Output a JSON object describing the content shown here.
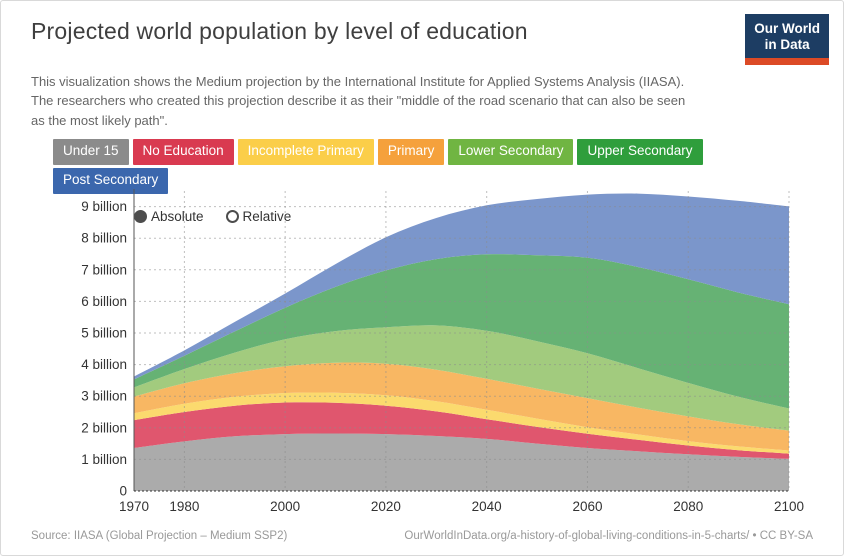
{
  "header": {
    "title": "Projected world population by level of education",
    "logo": {
      "line1": "Our World",
      "line2": "in Data",
      "bg_color": "#1d3d63",
      "stripe_color": "#dc4a26"
    }
  },
  "subtitle": "This visualization shows the Medium projection by the International Institute for Applied Systems Analysis (IIASA). The researchers who created this projection describe it as their \"middle of the road scenario that can also be seen as the most likely path\".",
  "legend": {
    "items": [
      {
        "label": "Under 15",
        "color": "#8b8b8b"
      },
      {
        "label": "No Education",
        "color": "#d93a50"
      },
      {
        "label": "Incomplete Primary",
        "color": "#fbce49"
      },
      {
        "label": "Primary",
        "color": "#f5a13c"
      },
      {
        "label": "Lower Secondary",
        "color": "#70b542"
      },
      {
        "label": "Upper Secondary",
        "color": "#2f9e3c"
      },
      {
        "label": "Post Secondary",
        "color": "#3b67ad"
      }
    ]
  },
  "toggle": {
    "options": [
      {
        "label": "Absolute",
        "selected": true
      },
      {
        "label": "Relative",
        "selected": false
      }
    ]
  },
  "chart_data": {
    "type": "area",
    "stacked": true,
    "title": "Projected world population by level of education",
    "units": "billion people",
    "x": [
      1970,
      1980,
      1990,
      2000,
      2010,
      2020,
      2030,
      2040,
      2050,
      2060,
      2070,
      2080,
      2090,
      2100
    ],
    "series": [
      {
        "name": "Under 15",
        "fill": "#ababab",
        "values": [
          1.36,
          1.57,
          1.73,
          1.8,
          1.82,
          1.8,
          1.74,
          1.65,
          1.5,
          1.36,
          1.26,
          1.16,
          1.08,
          1.02
        ]
      },
      {
        "name": "No Education",
        "fill": "#e0566e",
        "values": [
          0.88,
          0.93,
          0.97,
          1.0,
          0.97,
          0.9,
          0.78,
          0.62,
          0.53,
          0.45,
          0.36,
          0.28,
          0.21,
          0.16
        ]
      },
      {
        "name": "Incomplete Primary",
        "fill": "#fbda6e",
        "values": [
          0.22,
          0.26,
          0.28,
          0.3,
          0.32,
          0.33,
          0.32,
          0.3,
          0.26,
          0.21,
          0.17,
          0.14,
          0.12,
          0.1
        ]
      },
      {
        "name": "Primary",
        "fill": "#f8b763",
        "values": [
          0.53,
          0.65,
          0.75,
          0.85,
          0.95,
          1.0,
          1.0,
          0.98,
          0.95,
          0.92,
          0.85,
          0.78,
          0.7,
          0.63
        ]
      },
      {
        "name": "Lower Secondary",
        "fill": "#a2cb7e",
        "values": [
          0.29,
          0.45,
          0.65,
          0.85,
          1.0,
          1.15,
          1.4,
          1.52,
          1.5,
          1.42,
          1.25,
          1.06,
          0.87,
          0.7
        ]
      },
      {
        "name": "Upper Secondary",
        "fill": "#66b274",
        "values": [
          0.25,
          0.42,
          0.67,
          1.0,
          1.4,
          1.8,
          2.1,
          2.42,
          2.72,
          3.02,
          3.2,
          3.28,
          3.3,
          3.3
        ]
      },
      {
        "name": "Post Secondary",
        "fill": "#7b96cb",
        "values": [
          0.09,
          0.17,
          0.3,
          0.45,
          0.72,
          1.05,
          1.3,
          1.55,
          1.78,
          2.0,
          2.32,
          2.62,
          2.9,
          3.1
        ]
      }
    ],
    "yticks": {
      "values": [
        0,
        1,
        2,
        3,
        4,
        5,
        6,
        7,
        8,
        9
      ],
      "labels": [
        "0",
        "1 billion",
        "2 billion",
        "3 billion",
        "4 billion",
        "5 billion",
        "6 billion",
        "7 billion",
        "8 billion",
        "9 billion"
      ]
    },
    "xticks": [
      1970,
      1980,
      2000,
      2020,
      2040,
      2060,
      2080,
      2100
    ],
    "xlim": [
      1970,
      2100
    ],
    "ylim": [
      0,
      9.6
    ],
    "grid": true,
    "legend_position": "top-buttons"
  },
  "footer": {
    "source": "Source: IIASA (Global Projection – Medium SSP2)",
    "citation": "OurWorldInData.org/a-history-of-global-living-conditions-in-5-charts/ • CC BY-SA"
  }
}
